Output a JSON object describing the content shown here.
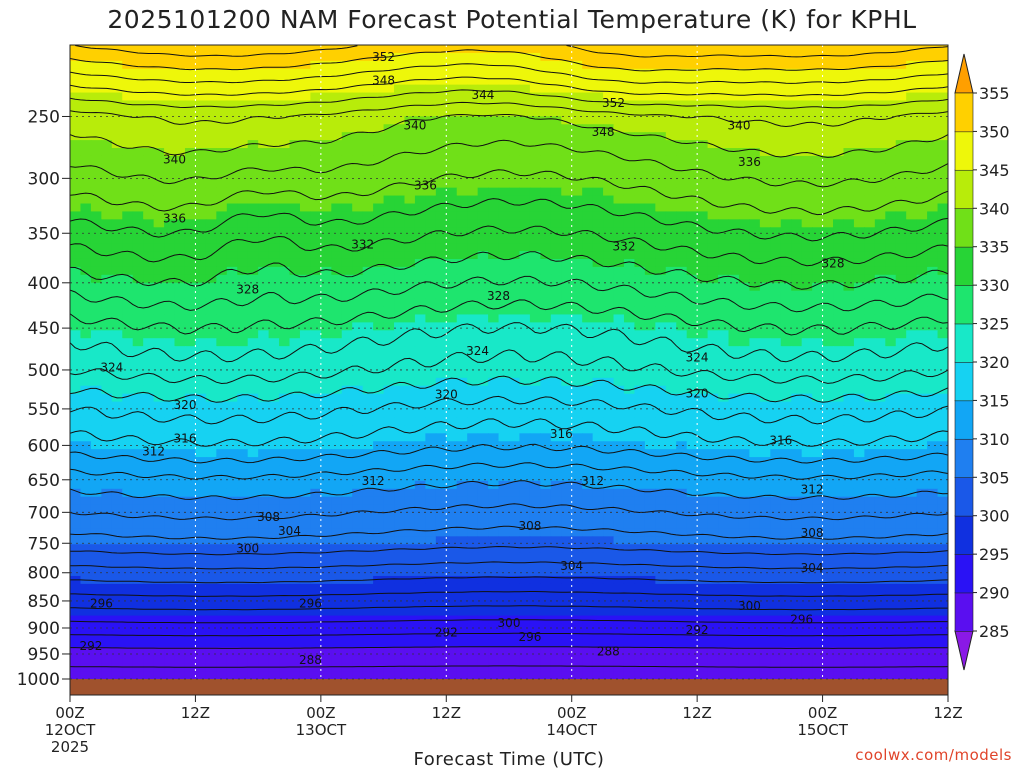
{
  "chart_data": {
    "type": "heatmap",
    "title": "2025101200 NAM Forecast Potential Temperature (K) for KPHL",
    "xlabel": "Forecast Time (UTC)",
    "ylabel": "",
    "credit": "coolwx.com/models",
    "x_ticks": [
      {
        "hours": 0,
        "lines": [
          "00Z",
          "12OCT",
          "2025"
        ]
      },
      {
        "hours": 12,
        "lines": [
          "12Z"
        ]
      },
      {
        "hours": 24,
        "lines": [
          "00Z",
          "13OCT"
        ]
      },
      {
        "hours": 36,
        "lines": [
          "12Z"
        ]
      },
      {
        "hours": 48,
        "lines": [
          "00Z",
          "14OCT"
        ]
      },
      {
        "hours": 60,
        "lines": [
          "12Z"
        ]
      },
      {
        "hours": 72,
        "lines": [
          "00Z",
          "15OCT"
        ]
      },
      {
        "hours": 84,
        "lines": [
          "12Z"
        ]
      }
    ],
    "xlim": [
      0,
      84
    ],
    "y_ticks": [
      250,
      300,
      350,
      400,
      450,
      500,
      550,
      600,
      650,
      700,
      750,
      800,
      850,
      900,
      950,
      1000
    ],
    "ylim_hpa": [
      200,
      1000
    ],
    "colorbar": {
      "levels": [
        285,
        290,
        295,
        300,
        305,
        310,
        315,
        320,
        325,
        330,
        335,
        340,
        345,
        350,
        355
      ],
      "colors": [
        "#8a19e6",
        "#5a0ff0",
        "#2a12f5",
        "#1030e0",
        "#1a58e8",
        "#1f7ff0",
        "#12a6f5",
        "#16d2f2",
        "#18e8c8",
        "#1ee56e",
        "#27d436",
        "#70e018",
        "#b8ec0a",
        "#eef70a",
        "#ffd000",
        "#ff9f00"
      ],
      "labels": [
        "285",
        "290",
        "295",
        "300",
        "305",
        "310",
        "315",
        "320",
        "325",
        "330",
        "335",
        "340",
        "345",
        "350",
        "355"
      ]
    },
    "theta_profile": [
      {
        "p": 1000,
        "theta": 287
      },
      {
        "p": 950,
        "theta": 289
      },
      {
        "p": 900,
        "theta": 293
      },
      {
        "p": 850,
        "theta": 297
      },
      {
        "p": 800,
        "theta": 301
      },
      {
        "p": 750,
        "theta": 305
      },
      {
        "p": 700,
        "theta": 308
      },
      {
        "p": 650,
        "theta": 311
      },
      {
        "p": 600,
        "theta": 315
      },
      {
        "p": 550,
        "theta": 318
      },
      {
        "p": 500,
        "theta": 322
      },
      {
        "p": 450,
        "theta": 325
      },
      {
        "p": 400,
        "theta": 329
      },
      {
        "p": 350,
        "theta": 333
      },
      {
        "p": 300,
        "theta": 337
      },
      {
        "p": 250,
        "theta": 341
      },
      {
        "p": 200,
        "theta": 352
      }
    ],
    "contour_interval": 2,
    "contour_labels": [
      {
        "text": "352",
        "hours": 30,
        "p": 208
      },
      {
        "text": "348",
        "hours": 30,
        "p": 224
      },
      {
        "text": "344",
        "hours": 39.5,
        "p": 234
      },
      {
        "text": "340",
        "hours": 33,
        "p": 257
      },
      {
        "text": "336",
        "hours": 34,
        "p": 306
      },
      {
        "text": "332",
        "hours": 28,
        "p": 361
      },
      {
        "text": "328",
        "hours": 17,
        "p": 407
      },
      {
        "text": "328",
        "hours": 41,
        "p": 414
      },
      {
        "text": "324",
        "hours": 39,
        "p": 477
      },
      {
        "text": "320",
        "hours": 36,
        "p": 531
      },
      {
        "text": "316",
        "hours": 47,
        "p": 584
      },
      {
        "text": "312",
        "hours": 29,
        "p": 652
      },
      {
        "text": "308",
        "hours": 44,
        "p": 722
      },
      {
        "text": "304",
        "hours": 48,
        "p": 788
      },
      {
        "text": "300",
        "hours": 42,
        "p": 891
      },
      {
        "text": "296",
        "hours": 44,
        "p": 917
      },
      {
        "text": "292",
        "hours": 36,
        "p": 909
      },
      {
        "text": "288",
        "hours": 23,
        "p": 962
      },
      {
        "text": "288",
        "hours": 51.5,
        "p": 945
      },
      {
        "text": "352",
        "hours": 52,
        "p": 240
      },
      {
        "text": "348",
        "hours": 51,
        "p": 262
      },
      {
        "text": "340",
        "hours": 10,
        "p": 284
      },
      {
        "text": "336",
        "hours": 10,
        "p": 336
      },
      {
        "text": "340",
        "hours": 64,
        "p": 257
      },
      {
        "text": "336",
        "hours": 65,
        "p": 286
      },
      {
        "text": "332",
        "hours": 53,
        "p": 363
      },
      {
        "text": "328",
        "hours": 73,
        "p": 380
      },
      {
        "text": "324",
        "hours": 4,
        "p": 497
      },
      {
        "text": "324",
        "hours": 60,
        "p": 485
      },
      {
        "text": "320",
        "hours": 11,
        "p": 545
      },
      {
        "text": "320",
        "hours": 60,
        "p": 530
      },
      {
        "text": "316",
        "hours": 11,
        "p": 590
      },
      {
        "text": "316",
        "hours": 68,
        "p": 593
      },
      {
        "text": "312",
        "hours": 8,
        "p": 609
      },
      {
        "text": "312",
        "hours": 50,
        "p": 652
      },
      {
        "text": "312",
        "hours": 71,
        "p": 665
      },
      {
        "text": "308",
        "hours": 19,
        "p": 707
      },
      {
        "text": "308",
        "hours": 71,
        "p": 733
      },
      {
        "text": "304",
        "hours": 21,
        "p": 730
      },
      {
        "text": "304",
        "hours": 71,
        "p": 792
      },
      {
        "text": "300",
        "hours": 17,
        "p": 759
      },
      {
        "text": "300",
        "hours": 65,
        "p": 859
      },
      {
        "text": "296",
        "hours": 3,
        "p": 855
      },
      {
        "text": "296",
        "hours": 23,
        "p": 855
      },
      {
        "text": "296",
        "hours": 70,
        "p": 884
      },
      {
        "text": "292",
        "hours": 2,
        "p": 934
      },
      {
        "text": "292",
        "hours": 60,
        "p": 904
      }
    ]
  }
}
